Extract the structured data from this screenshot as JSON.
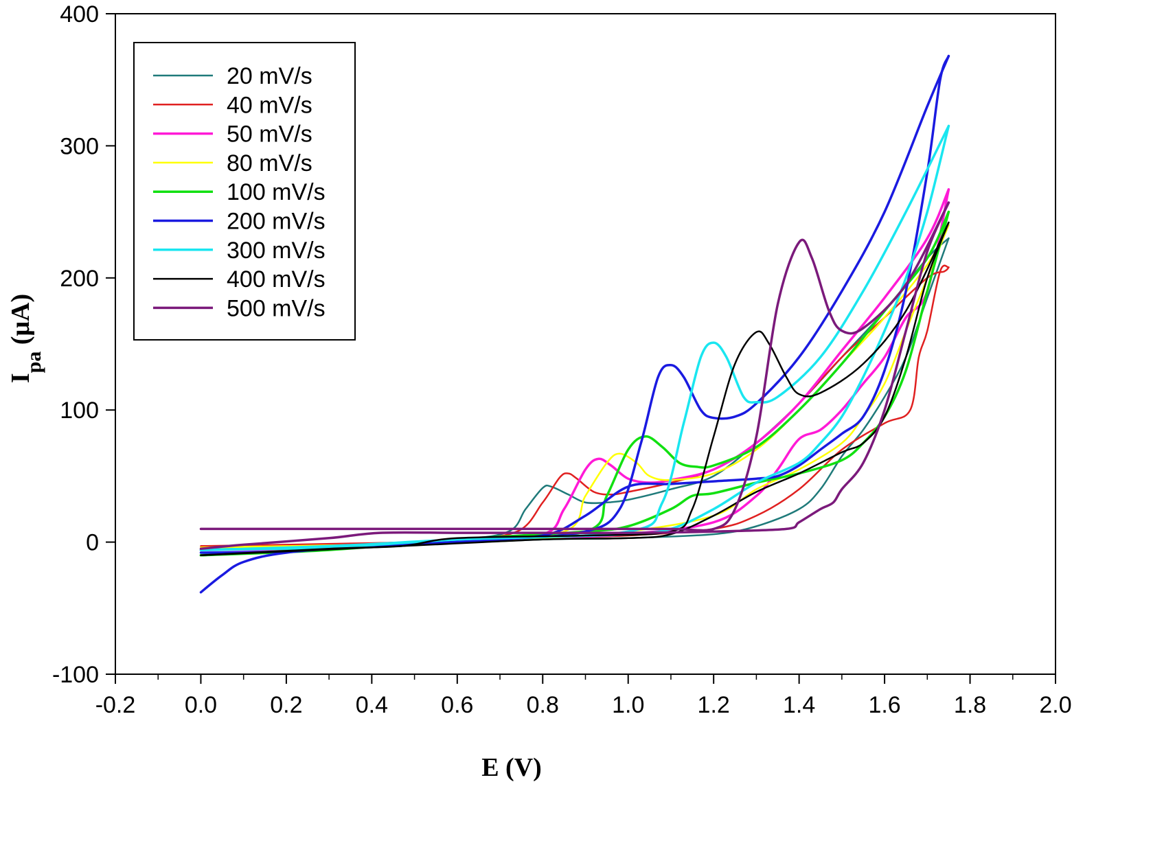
{
  "chart_data": {
    "type": "line",
    "title": "",
    "xlabel": "E (V)",
    "ylabel_main": "I",
    "ylabel_sub": "pa",
    "ylabel_unit": " (μA)",
    "xlim": [
      -0.2,
      2.0
    ],
    "ylim": [
      -100,
      400
    ],
    "xticks": [
      -0.2,
      0.0,
      0.2,
      0.4,
      0.6,
      0.8,
      1.0,
      1.2,
      1.4,
      1.6,
      1.8,
      2.0
    ],
    "xtick_labels": [
      "-0.2",
      "0.0",
      "0.2",
      "0.4",
      "0.6",
      "0.8",
      "1.0",
      "1.2",
      "1.4",
      "1.6",
      "1.8",
      "2.0"
    ],
    "yticks": [
      -100,
      0,
      100,
      200,
      300,
      400
    ],
    "ytick_labels": [
      "-100",
      "0",
      "100",
      "200",
      "300",
      "400"
    ],
    "grid": false,
    "legend_position": "top-left",
    "series": [
      {
        "name": "20 mV/s",
        "color": "#1f7a7a",
        "forward": [
          [
            0.0,
            -5
          ],
          [
            0.3,
            -3
          ],
          [
            0.6,
            2
          ],
          [
            0.72,
            8
          ],
          [
            0.76,
            25
          ],
          [
            0.8,
            41
          ],
          [
            0.82,
            42
          ],
          [
            0.86,
            36
          ],
          [
            0.9,
            30
          ],
          [
            0.95,
            30
          ],
          [
            1.0,
            32
          ],
          [
            1.1,
            40
          ],
          [
            1.2,
            50
          ],
          [
            1.3,
            75
          ],
          [
            1.4,
            105
          ],
          [
            1.5,
            140
          ],
          [
            1.6,
            175
          ],
          [
            1.7,
            215
          ],
          [
            1.75,
            230
          ]
        ],
        "reverse": [
          [
            1.75,
            230
          ],
          [
            1.7,
            185
          ],
          [
            1.65,
            140
          ],
          [
            1.6,
            110
          ],
          [
            1.55,
            85
          ],
          [
            1.5,
            65
          ],
          [
            1.45,
            40
          ],
          [
            1.4,
            25
          ],
          [
            1.3,
            12
          ],
          [
            1.2,
            6
          ],
          [
            1.0,
            3
          ],
          [
            0.8,
            2
          ],
          [
            0.5,
            -2
          ],
          [
            0.2,
            -4
          ],
          [
            0.0,
            -5
          ]
        ]
      },
      {
        "name": "40 mV/s",
        "color": "#e02020",
        "forward": [
          [
            0.0,
            -3
          ],
          [
            0.3,
            -2
          ],
          [
            0.6,
            2
          ],
          [
            0.74,
            8
          ],
          [
            0.8,
            30
          ],
          [
            0.84,
            49
          ],
          [
            0.86,
            52
          ],
          [
            0.88,
            48
          ],
          [
            0.92,
            38
          ],
          [
            0.96,
            36
          ],
          [
            1.0,
            38
          ],
          [
            1.1,
            45
          ],
          [
            1.2,
            55
          ],
          [
            1.3,
            75
          ],
          [
            1.4,
            105
          ],
          [
            1.5,
            140
          ],
          [
            1.6,
            170
          ],
          [
            1.7,
            200
          ],
          [
            1.74,
            205
          ],
          [
            1.75,
            208
          ]
        ],
        "reverse": [
          [
            1.75,
            208
          ],
          [
            1.73,
            205
          ],
          [
            1.7,
            160
          ],
          [
            1.68,
            140
          ],
          [
            1.66,
            100
          ],
          [
            1.6,
            90
          ],
          [
            1.5,
            70
          ],
          [
            1.4,
            40
          ],
          [
            1.3,
            20
          ],
          [
            1.2,
            10
          ],
          [
            1.0,
            5
          ],
          [
            0.8,
            3
          ],
          [
            0.5,
            0
          ],
          [
            0.2,
            -2
          ],
          [
            0.0,
            -3
          ]
        ]
      },
      {
        "name": "50 mV/s",
        "color": "#ff1ad6",
        "forward": [
          [
            0.0,
            -6
          ],
          [
            0.3,
            -4
          ],
          [
            0.6,
            1
          ],
          [
            0.8,
            6
          ],
          [
            0.85,
            25
          ],
          [
            0.9,
            55
          ],
          [
            0.93,
            63
          ],
          [
            0.96,
            58
          ],
          [
            1.0,
            48
          ],
          [
            1.05,
            45
          ],
          [
            1.1,
            47
          ],
          [
            1.2,
            55
          ],
          [
            1.3,
            75
          ],
          [
            1.4,
            105
          ],
          [
            1.5,
            145
          ],
          [
            1.6,
            185
          ],
          [
            1.7,
            230
          ],
          [
            1.75,
            267
          ]
        ],
        "reverse": [
          [
            1.75,
            267
          ],
          [
            1.7,
            190
          ],
          [
            1.65,
            170
          ],
          [
            1.6,
            140
          ],
          [
            1.55,
            120
          ],
          [
            1.5,
            100
          ],
          [
            1.45,
            85
          ],
          [
            1.4,
            78
          ],
          [
            1.35,
            55
          ],
          [
            1.3,
            35
          ],
          [
            1.2,
            15
          ],
          [
            1.0,
            6
          ],
          [
            0.8,
            3
          ],
          [
            0.5,
            -1
          ],
          [
            0.3,
            -5
          ],
          [
            0.0,
            -6
          ]
        ]
      },
      {
        "name": "80 mV/s",
        "color": "#ffff00",
        "forward": [
          [
            0.0,
            -4
          ],
          [
            0.3,
            -3
          ],
          [
            0.6,
            1
          ],
          [
            0.85,
            8
          ],
          [
            0.9,
            35
          ],
          [
            0.95,
            60
          ],
          [
            0.98,
            67
          ],
          [
            1.02,
            60
          ],
          [
            1.05,
            50
          ],
          [
            1.1,
            47
          ],
          [
            1.2,
            52
          ],
          [
            1.3,
            70
          ],
          [
            1.4,
            100
          ],
          [
            1.5,
            135
          ],
          [
            1.6,
            170
          ],
          [
            1.7,
            210
          ],
          [
            1.75,
            240
          ]
        ],
        "reverse": [
          [
            1.75,
            240
          ],
          [
            1.7,
            200
          ],
          [
            1.65,
            160
          ],
          [
            1.6,
            120
          ],
          [
            1.55,
            95
          ],
          [
            1.5,
            75
          ],
          [
            1.4,
            55
          ],
          [
            1.3,
            40
          ],
          [
            1.2,
            20
          ],
          [
            1.0,
            8
          ],
          [
            0.8,
            3
          ],
          [
            0.5,
            -1
          ],
          [
            0.2,
            -3
          ],
          [
            0.0,
            -4
          ]
        ]
      },
      {
        "name": "100 mV/s",
        "color": "#11e011",
        "forward": [
          [
            0.0,
            -10
          ],
          [
            0.3,
            -5
          ],
          [
            0.6,
            1
          ],
          [
            0.9,
            8
          ],
          [
            0.95,
            35
          ],
          [
            1.0,
            70
          ],
          [
            1.04,
            80
          ],
          [
            1.08,
            72
          ],
          [
            1.12,
            60
          ],
          [
            1.16,
            57
          ],
          [
            1.2,
            58
          ],
          [
            1.3,
            72
          ],
          [
            1.4,
            100
          ],
          [
            1.5,
            135
          ],
          [
            1.6,
            175
          ],
          [
            1.7,
            215
          ],
          [
            1.75,
            250
          ]
        ],
        "reverse": [
          [
            1.75,
            250
          ],
          [
            1.7,
            190
          ],
          [
            1.65,
            130
          ],
          [
            1.6,
            95
          ],
          [
            1.55,
            75
          ],
          [
            1.5,
            62
          ],
          [
            1.4,
            52
          ],
          [
            1.3,
            45
          ],
          [
            1.2,
            37
          ],
          [
            1.15,
            35
          ],
          [
            1.1,
            25
          ],
          [
            1.0,
            12
          ],
          [
            0.9,
            8
          ],
          [
            0.6,
            2
          ],
          [
            0.3,
            -6
          ],
          [
            0.0,
            -10
          ]
        ]
      },
      {
        "name": "200 mV/s",
        "color": "#1a1ae0",
        "forward": [
          [
            0.0,
            -38
          ],
          [
            0.05,
            -25
          ],
          [
            0.1,
            -15
          ],
          [
            0.2,
            -8
          ],
          [
            0.4,
            -3
          ],
          [
            0.7,
            2
          ],
          [
            0.9,
            8
          ],
          [
            0.98,
            25
          ],
          [
            1.03,
            75
          ],
          [
            1.07,
            125
          ],
          [
            1.1,
            134
          ],
          [
            1.13,
            125
          ],
          [
            1.17,
            100
          ],
          [
            1.2,
            94
          ],
          [
            1.25,
            95
          ],
          [
            1.3,
            105
          ],
          [
            1.4,
            140
          ],
          [
            1.5,
            190
          ],
          [
            1.6,
            250
          ],
          [
            1.7,
            330
          ],
          [
            1.75,
            368
          ]
        ],
        "reverse": [
          [
            1.75,
            368
          ],
          [
            1.73,
            350
          ],
          [
            1.7,
            280
          ],
          [
            1.65,
            190
          ],
          [
            1.6,
            130
          ],
          [
            1.55,
            95
          ],
          [
            1.5,
            82
          ],
          [
            1.45,
            70
          ],
          [
            1.4,
            58
          ],
          [
            1.35,
            50
          ],
          [
            1.3,
            48
          ],
          [
            1.2,
            46
          ],
          [
            1.1,
            44
          ],
          [
            1.0,
            42
          ],
          [
            0.9,
            20
          ],
          [
            0.8,
            5
          ],
          [
            0.6,
            2
          ],
          [
            0.4,
            -2
          ],
          [
            0.2,
            -7
          ],
          [
            0.0,
            -8
          ]
        ]
      },
      {
        "name": "300 mV/s",
        "color": "#1ae6f0",
        "forward": [
          [
            0.0,
            -6
          ],
          [
            0.3,
            -3
          ],
          [
            0.6,
            2
          ],
          [
            1.0,
            8
          ],
          [
            1.08,
            30
          ],
          [
            1.13,
            90
          ],
          [
            1.17,
            140
          ],
          [
            1.2,
            151
          ],
          [
            1.23,
            140
          ],
          [
            1.27,
            110
          ],
          [
            1.3,
            106
          ],
          [
            1.35,
            110
          ],
          [
            1.45,
            140
          ],
          [
            1.55,
            190
          ],
          [
            1.65,
            250
          ],
          [
            1.75,
            315
          ]
        ],
        "reverse": [
          [
            1.75,
            315
          ],
          [
            1.7,
            250
          ],
          [
            1.65,
            200
          ],
          [
            1.6,
            160
          ],
          [
            1.55,
            125
          ],
          [
            1.5,
            95
          ],
          [
            1.45,
            75
          ],
          [
            1.4,
            60
          ],
          [
            1.3,
            45
          ],
          [
            1.2,
            25
          ],
          [
            1.1,
            10
          ],
          [
            1.0,
            6
          ],
          [
            0.8,
            4
          ],
          [
            0.6,
            2
          ],
          [
            0.3,
            -4
          ],
          [
            0.0,
            -6
          ]
        ]
      },
      {
        "name": "400 mV/s",
        "color": "#000000",
        "forward": [
          [
            0.0,
            -10
          ],
          [
            0.3,
            -5
          ],
          [
            0.47,
            -3
          ],
          [
            0.6,
            3
          ],
          [
            0.9,
            5
          ],
          [
            1.1,
            8
          ],
          [
            1.15,
            25
          ],
          [
            1.2,
            80
          ],
          [
            1.25,
            135
          ],
          [
            1.3,
            159
          ],
          [
            1.33,
            150
          ],
          [
            1.37,
            125
          ],
          [
            1.4,
            112
          ],
          [
            1.45,
            113
          ],
          [
            1.55,
            135
          ],
          [
            1.65,
            175
          ],
          [
            1.75,
            242
          ]
        ],
        "reverse": [
          [
            1.75,
            242
          ],
          [
            1.7,
            200
          ],
          [
            1.65,
            140
          ],
          [
            1.6,
            95
          ],
          [
            1.55,
            75
          ],
          [
            1.5,
            68
          ],
          [
            1.4,
            52
          ],
          [
            1.3,
            38
          ],
          [
            1.2,
            20
          ],
          [
            1.1,
            6
          ],
          [
            1.0,
            3
          ],
          [
            0.8,
            2
          ],
          [
            0.47,
            -3
          ],
          [
            0.2,
            -7
          ],
          [
            0.0,
            -10
          ]
        ]
      },
      {
        "name": "500 mV/s",
        "color": "#7b1a7b",
        "forward": [
          [
            0.0,
            10
          ],
          [
            0.3,
            10
          ],
          [
            0.6,
            10
          ],
          [
            0.9,
            10
          ],
          [
            1.1,
            10
          ],
          [
            1.2,
            10
          ],
          [
            1.25,
            25
          ],
          [
            1.3,
            80
          ],
          [
            1.35,
            180
          ],
          [
            1.4,
            227
          ],
          [
            1.43,
            215
          ],
          [
            1.47,
            175
          ],
          [
            1.5,
            160
          ],
          [
            1.55,
            162
          ],
          [
            1.65,
            195
          ],
          [
            1.75,
            257
          ]
        ],
        "reverse": [
          [
            1.75,
            257
          ],
          [
            1.7,
            220
          ],
          [
            1.65,
            160
          ],
          [
            1.6,
            100
          ],
          [
            1.55,
            60
          ],
          [
            1.5,
            40
          ],
          [
            1.48,
            30
          ],
          [
            1.45,
            25
          ],
          [
            1.4,
            15
          ],
          [
            1.37,
            10
          ],
          [
            1.2,
            8
          ],
          [
            1.0,
            7
          ],
          [
            0.8,
            7
          ],
          [
            0.6,
            7
          ],
          [
            0.42,
            7
          ],
          [
            0.3,
            3
          ],
          [
            0.1,
            -2
          ],
          [
            0.0,
            -5
          ]
        ]
      }
    ]
  }
}
